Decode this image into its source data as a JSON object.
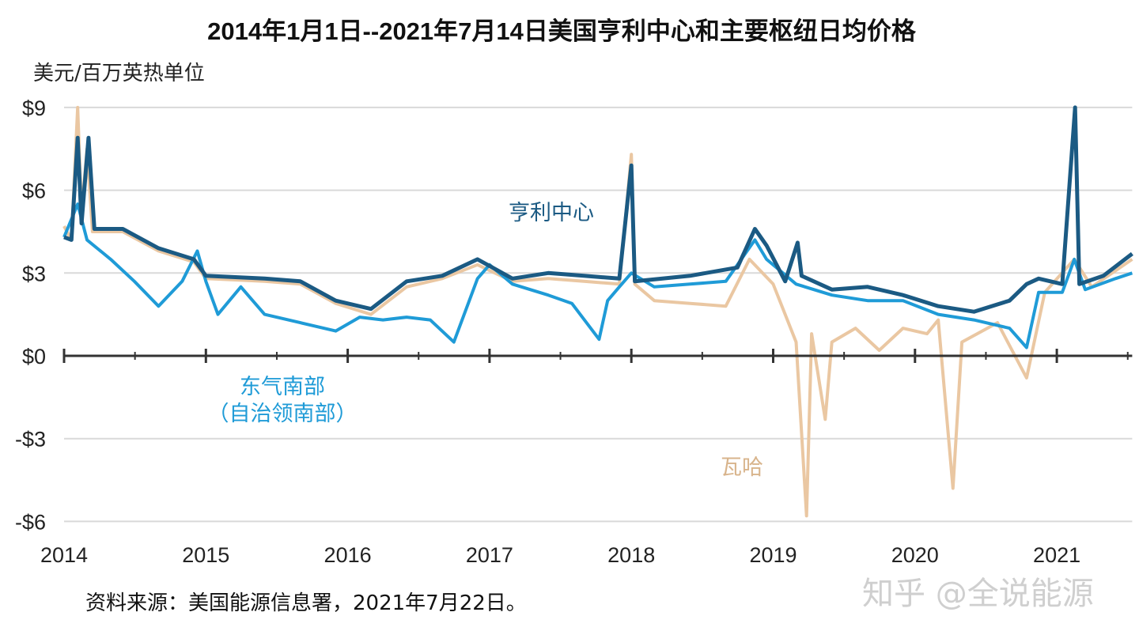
{
  "chart_data": {
    "type": "line",
    "title": "2014年1月1日--2021年7月14日美国亨利中心和主要枢纽日均价格",
    "ylabel": "美元/百万英热单位",
    "xlim": [
      "2014-01-01",
      "2021-07-14"
    ],
    "ylim": [
      -6,
      9
    ],
    "x_ticks": [
      "2014",
      "2015",
      "2016",
      "2017",
      "2018",
      "2019",
      "2020",
      "2021"
    ],
    "y_ticks": [
      {
        "v": 9,
        "label": "$9"
      },
      {
        "v": 6,
        "label": "$6"
      },
      {
        "v": 3,
        "label": "$3"
      },
      {
        "v": 0,
        "label": "$0"
      },
      {
        "v": -3,
        "label": "-$3"
      },
      {
        "v": -6,
        "label": "-$6"
      }
    ],
    "grid": true,
    "series": [
      {
        "name": "瓦哈",
        "color": "#eac7a2",
        "points": [
          [
            "2014-01-01",
            4.7
          ],
          [
            "2014-01-20",
            4.2
          ],
          [
            "2014-02-05",
            9.0
          ],
          [
            "2014-02-15",
            5.2
          ],
          [
            "2014-03-01",
            7.5
          ],
          [
            "2014-03-15",
            4.5
          ],
          [
            "2014-06-01",
            4.5
          ],
          [
            "2014-09-01",
            3.8
          ],
          [
            "2014-12-01",
            3.4
          ],
          [
            "2015-01-01",
            2.8
          ],
          [
            "2015-06-01",
            2.7
          ],
          [
            "2015-09-01",
            2.6
          ],
          [
            "2015-12-01",
            1.9
          ],
          [
            "2016-03-01",
            1.5
          ],
          [
            "2016-06-01",
            2.5
          ],
          [
            "2016-09-01",
            2.8
          ],
          [
            "2016-12-01",
            3.3
          ],
          [
            "2017-03-01",
            2.7
          ],
          [
            "2017-06-01",
            2.8
          ],
          [
            "2017-09-01",
            2.7
          ],
          [
            "2017-12-01",
            2.6
          ],
          [
            "2018-01-01",
            7.3
          ],
          [
            "2018-01-10",
            2.6
          ],
          [
            "2018-03-01",
            2.0
          ],
          [
            "2018-06-01",
            1.9
          ],
          [
            "2018-09-01",
            1.8
          ],
          [
            "2018-11-01",
            3.5
          ],
          [
            "2019-01-01",
            2.6
          ],
          [
            "2019-03-01",
            0.5
          ],
          [
            "2019-03-28",
            -5.8
          ],
          [
            "2019-04-10",
            0.8
          ],
          [
            "2019-05-15",
            -2.3
          ],
          [
            "2019-06-01",
            0.5
          ],
          [
            "2019-08-01",
            1.0
          ],
          [
            "2019-10-01",
            0.2
          ],
          [
            "2019-12-01",
            1.0
          ],
          [
            "2020-02-01",
            0.8
          ],
          [
            "2020-03-01",
            1.3
          ],
          [
            "2020-04-08",
            -4.8
          ],
          [
            "2020-05-01",
            0.5
          ],
          [
            "2020-08-01",
            1.2
          ],
          [
            "2020-10-15",
            -0.8
          ],
          [
            "2020-12-01",
            2.3
          ],
          [
            "2021-02-15",
            3.5
          ],
          [
            "2021-04-01",
            2.5
          ],
          [
            "2021-07-14",
            3.5
          ]
        ]
      },
      {
        "name": "东气南部\n（自治领南部）",
        "color": "#1f9bd7",
        "points": [
          [
            "2014-01-01",
            4.3
          ],
          [
            "2014-02-05",
            5.5
          ],
          [
            "2014-03-01",
            4.2
          ],
          [
            "2014-05-01",
            3.5
          ],
          [
            "2014-07-01",
            2.7
          ],
          [
            "2014-09-01",
            1.8
          ],
          [
            "2014-11-01",
            2.7
          ],
          [
            "2014-12-10",
            3.8
          ],
          [
            "2015-01-01",
            2.7
          ],
          [
            "2015-02-01",
            1.5
          ],
          [
            "2015-04-01",
            2.5
          ],
          [
            "2015-06-01",
            1.5
          ],
          [
            "2015-09-01",
            1.2
          ],
          [
            "2015-12-01",
            0.9
          ],
          [
            "2016-02-01",
            1.4
          ],
          [
            "2016-04-01",
            1.3
          ],
          [
            "2016-06-01",
            1.4
          ],
          [
            "2016-08-01",
            1.3
          ],
          [
            "2016-10-01",
            0.5
          ],
          [
            "2016-12-01",
            2.8
          ],
          [
            "2017-01-01",
            3.3
          ],
          [
            "2017-03-01",
            2.6
          ],
          [
            "2017-06-01",
            2.2
          ],
          [
            "2017-08-01",
            1.9
          ],
          [
            "2017-10-10",
            0.6
          ],
          [
            "2017-11-01",
            2.0
          ],
          [
            "2017-12-01",
            2.5
          ],
          [
            "2018-01-01",
            3.0
          ],
          [
            "2018-03-01",
            2.5
          ],
          [
            "2018-06-01",
            2.6
          ],
          [
            "2018-09-01",
            2.7
          ],
          [
            "2018-11-15",
            4.2
          ],
          [
            "2018-12-15",
            3.5
          ],
          [
            "2019-03-01",
            2.6
          ],
          [
            "2019-06-01",
            2.2
          ],
          [
            "2019-09-01",
            2.0
          ],
          [
            "2019-12-01",
            2.0
          ],
          [
            "2020-03-01",
            1.5
          ],
          [
            "2020-06-01",
            1.3
          ],
          [
            "2020-09-01",
            1.0
          ],
          [
            "2020-10-15",
            0.3
          ],
          [
            "2020-11-15",
            2.3
          ],
          [
            "2021-01-15",
            2.3
          ],
          [
            "2021-02-15",
            3.5
          ],
          [
            "2021-03-15",
            2.4
          ],
          [
            "2021-06-01",
            2.8
          ],
          [
            "2021-07-14",
            3.0
          ]
        ]
      },
      {
        "name": "亨利中心",
        "color": "#1b5a83",
        "points": [
          [
            "2014-01-01",
            4.3
          ],
          [
            "2014-01-20",
            4.2
          ],
          [
            "2014-02-05",
            7.9
          ],
          [
            "2014-02-15",
            4.8
          ],
          [
            "2014-03-05",
            7.9
          ],
          [
            "2014-03-20",
            4.6
          ],
          [
            "2014-06-01",
            4.6
          ],
          [
            "2014-09-01",
            3.9
          ],
          [
            "2014-12-01",
            3.5
          ],
          [
            "2015-01-01",
            2.9
          ],
          [
            "2015-06-01",
            2.8
          ],
          [
            "2015-09-01",
            2.7
          ],
          [
            "2015-12-01",
            2.0
          ],
          [
            "2016-03-01",
            1.7
          ],
          [
            "2016-06-01",
            2.7
          ],
          [
            "2016-09-01",
            2.9
          ],
          [
            "2016-12-01",
            3.5
          ],
          [
            "2017-03-01",
            2.8
          ],
          [
            "2017-06-01",
            3.0
          ],
          [
            "2017-09-01",
            2.9
          ],
          [
            "2017-12-01",
            2.8
          ],
          [
            "2018-01-01",
            6.9
          ],
          [
            "2018-01-10",
            2.7
          ],
          [
            "2018-06-01",
            2.9
          ],
          [
            "2018-10-01",
            3.2
          ],
          [
            "2018-11-15",
            4.6
          ],
          [
            "2018-12-15",
            4.0
          ],
          [
            "2019-02-01",
            2.7
          ],
          [
            "2019-03-05",
            4.1
          ],
          [
            "2019-03-15",
            2.9
          ],
          [
            "2019-06-01",
            2.4
          ],
          [
            "2019-09-01",
            2.5
          ],
          [
            "2019-12-01",
            2.2
          ],
          [
            "2020-03-01",
            1.8
          ],
          [
            "2020-06-01",
            1.6
          ],
          [
            "2020-09-01",
            2.0
          ],
          [
            "2020-10-15",
            2.6
          ],
          [
            "2020-11-15",
            2.8
          ],
          [
            "2021-01-15",
            2.6
          ],
          [
            "2021-02-17",
            9.0
          ],
          [
            "2021-02-28",
            2.6
          ],
          [
            "2021-05-01",
            2.9
          ],
          [
            "2021-07-14",
            3.7
          ]
        ]
      }
    ],
    "annotations": [
      "亨利中心",
      "东气南部",
      "（自治领南部）",
      "瓦哈"
    ]
  },
  "source": "资料来源：美国能源信息署，2021年7月22日。",
  "watermark": "知乎 @全说能源"
}
